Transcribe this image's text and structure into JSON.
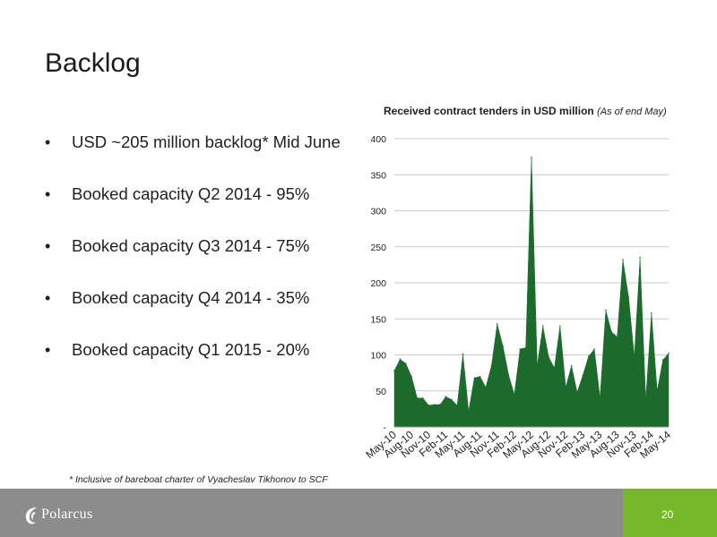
{
  "slide": {
    "title": "Backlog",
    "bullets": [
      "USD ~205 million backlog* Mid June",
      "Booked capacity Q2 2014 - 95%",
      "Booked capacity Q3 2014 - 75%",
      "Booked capacity Q4 2014 - 35%",
      "Booked capacity Q1 2015 - 20%"
    ],
    "bullet_glyph": "•",
    "footnote": "* Inclusive of bareboat charter of Vyacheslav Tikhonov to SCF",
    "page_number": "20",
    "logo_text": "Polarcus",
    "logo_mark": "polarcus-swirl-logo",
    "colors": {
      "series_fill": "#1c6b2c",
      "footer": "#8c8c8c",
      "footer_accent": "#77b82a"
    }
  },
  "chart_data": {
    "type": "area",
    "title": "Received contract tenders in USD million",
    "subtitle": "(As of end May)",
    "xlabel": "",
    "ylabel": "",
    "ylim": [
      0,
      400
    ],
    "yticks": [
      0,
      50,
      100,
      150,
      200,
      250,
      300,
      350,
      400
    ],
    "ytick_labels": [
      "-",
      "50",
      "100",
      "150",
      "200",
      "250",
      "300",
      "350",
      "400"
    ],
    "grid": true,
    "legend": "none",
    "x_tick_labels": [
      "May-10",
      "Aug-10",
      "Nov-10",
      "Feb-11",
      "May-11",
      "Aug-11",
      "Nov-11",
      "Feb-12",
      "May-12",
      "Aug-12",
      "Nov-12",
      "Feb-13",
      "May-13",
      "Aug-13",
      "Nov-13",
      "Feb-14",
      "May-14"
    ],
    "x": [
      "May-10",
      "Jun-10",
      "Jul-10",
      "Aug-10",
      "Sep-10",
      "Oct-10",
      "Nov-10",
      "Dec-10",
      "Jan-11",
      "Feb-11",
      "Mar-11",
      "Apr-11",
      "May-11",
      "Jun-11",
      "Jul-11",
      "Aug-11",
      "Sep-11",
      "Oct-11",
      "Nov-11",
      "Dec-11",
      "Jan-12",
      "Feb-12",
      "Mar-12",
      "Apr-12",
      "May-12",
      "Jun-12",
      "Jul-12",
      "Aug-12",
      "Sep-12",
      "Oct-12",
      "Nov-12",
      "Dec-12",
      "Jan-13",
      "Feb-13",
      "Mar-13",
      "Apr-13",
      "May-13",
      "Jun-13",
      "Jul-13",
      "Aug-13",
      "Sep-13",
      "Oct-13",
      "Nov-13",
      "Dec-13",
      "Jan-14",
      "Feb-14",
      "Mar-14",
      "Apr-14",
      "May-14"
    ],
    "series": [
      {
        "values": [
          78,
          94,
          88,
          70,
          40,
          40,
          30,
          31,
          31,
          42,
          38,
          30,
          101,
          22,
          68,
          70,
          55,
          85,
          143,
          112,
          72,
          45,
          108,
          110,
          374,
          85,
          140,
          97,
          82,
          140,
          55,
          85,
          48,
          72,
          98,
          108,
          40,
          162,
          132,
          125,
          232,
          180,
          98,
          235,
          38,
          158,
          50,
          93,
          102
        ]
      }
    ]
  }
}
